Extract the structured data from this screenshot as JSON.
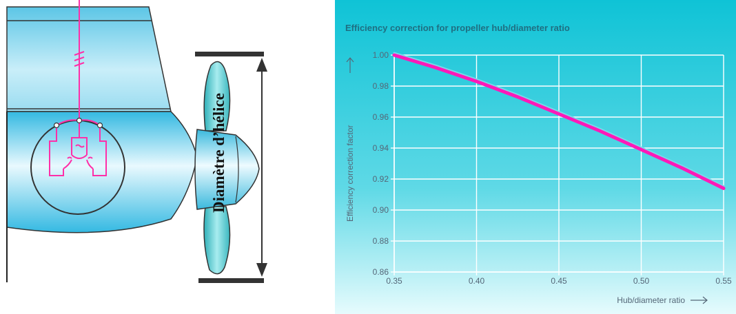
{
  "illustration": {
    "diameter_label": "Diamètre d’hélice",
    "colors": {
      "hull": "#6fd0ec",
      "hull_light": "#dff6fd",
      "propeller": "#49c3c8",
      "wiring": "#ff2fa8",
      "bar": "#333333"
    }
  },
  "chart_data": {
    "type": "line",
    "title": "Efficiency correction for propeller hub/diameter ratio",
    "xlabel": "Hub/diameter ratio",
    "ylabel": "Efficiency correction factor",
    "xlim": [
      0.35,
      0.55
    ],
    "ylim": [
      0.86,
      1.0
    ],
    "x_ticks": [
      "0.35",
      "0.40",
      "0.45",
      "0.50",
      "0.55"
    ],
    "y_ticks": [
      "0.86",
      "0.88",
      "0.90",
      "0.92",
      "0.94",
      "0.96",
      "0.98",
      "1.00"
    ],
    "grid": true,
    "series": [
      {
        "color": "#ff19b8",
        "x": [
          0.35,
          0.375,
          0.4,
          0.425,
          0.45,
          0.475,
          0.5,
          0.525,
          0.55
        ],
        "y": [
          1.0,
          0.992,
          0.983,
          0.973,
          0.962,
          0.951,
          0.939,
          0.927,
          0.914
        ]
      }
    ],
    "colors": {
      "background_top": "#12c4d6",
      "background_bottom": "#e3fbfd",
      "grid": "#ffffff",
      "axis_text": "#556677"
    }
  }
}
